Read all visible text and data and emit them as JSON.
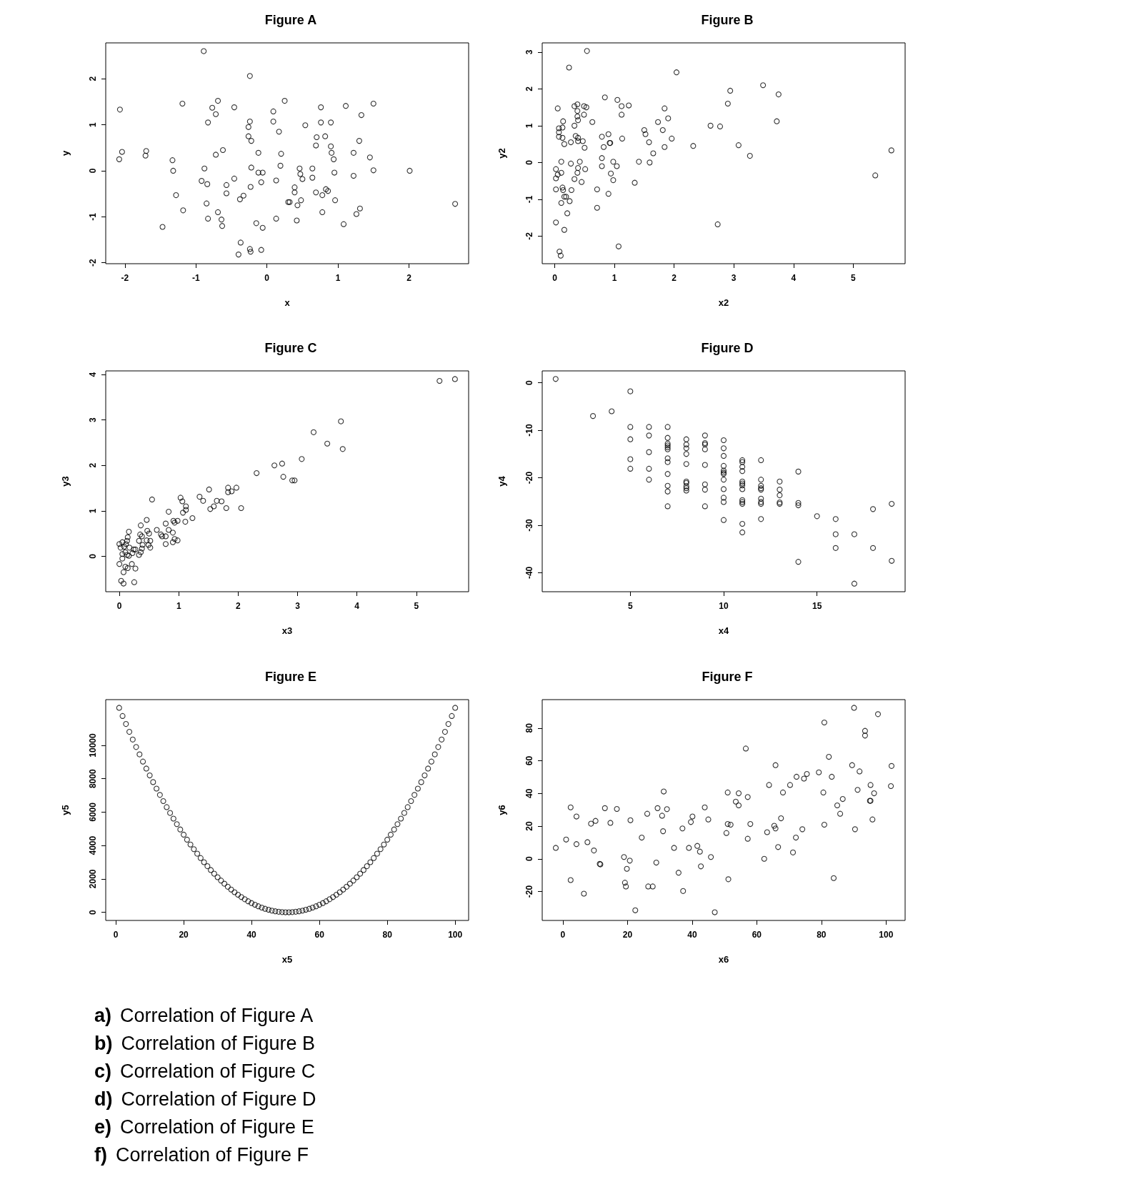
{
  "chart_data": [
    {
      "type": "scatter",
      "title": "Figure A",
      "xlabel": "x",
      "ylabel": "y",
      "color": "#000000",
      "marker": "circle",
      "xlim": [
        -2.27,
        2.84
      ],
      "ylim": [
        -2.02,
        2.78
      ],
      "xticks": [
        -2,
        -1,
        0,
        1,
        2
      ],
      "yticks": [
        -2,
        -1,
        0,
        1,
        2
      ],
      "x": [
        -0.89,
        -0.24,
        0.25,
        -0.69,
        -1.19,
        1.5,
        -2.07,
        -0.77,
        -0.46,
        0.76,
        1.11,
        -0.72,
        0.09,
        1.33,
        -0.83,
        -0.24,
        0.09,
        0.76,
        0.9,
        -0.26,
        0.54,
        0.17,
        -0.26,
        0.7,
        0.82,
        -0.22,
        1.3,
        0.69,
        0.9,
        -2.04,
        -1.7,
        -0.62,
        -0.12,
        0.91,
        1.22,
        -0.72,
        0.2,
        -1.71,
        -2.08,
        -1.33,
        0.94,
        1.45,
        0.19,
        -0.88,
        -0.22,
        0.46,
        0.64,
        -1.32,
        1.5,
        2.01,
        -0.12,
        -0.06,
        0.47,
        0.95,
        1.22,
        -0.46,
        0.13,
        0.5,
        0.64,
        -0.92,
        -0.08,
        -0.84,
        -0.57,
        -0.23,
        0.39,
        0.39,
        0.83,
        0.86,
        -1.28,
        -0.57,
        0.69,
        0.78,
        -0.33,
        -0.38,
        0.48,
        0.96,
        0.3,
        0.32,
        -0.85,
        0.43,
        2.65,
        1.31,
        -1.18,
        -0.69,
        0.78,
        1.26,
        -0.83,
        0.13,
        -0.64,
        0.42,
        -1.47,
        -0.63,
        -0.15,
        1.08,
        -0.06,
        -0.37,
        -0.24,
        -0.08,
        -0.23,
        -0.4
      ],
      "values": [
        2.6,
        2.06,
        1.52,
        1.52,
        1.46,
        1.46,
        1.33,
        1.37,
        1.38,
        1.38,
        1.41,
        1.23,
        1.29,
        1.21,
        1.05,
        1.07,
        1.07,
        1.05,
        1.05,
        0.95,
        0.99,
        0.85,
        0.75,
        0.73,
        0.75,
        0.65,
        0.65,
        0.55,
        0.53,
        0.41,
        0.43,
        0.45,
        0.39,
        0.39,
        0.39,
        0.35,
        0.37,
        0.33,
        0.25,
        0.23,
        0.25,
        0.29,
        0.11,
        0.05,
        0.07,
        0.05,
        0.05,
        0,
        0.01,
        0,
        -0.04,
        -0.04,
        -0.07,
        -0.04,
        -0.11,
        -0.17,
        -0.21,
        -0.18,
        -0.15,
        -0.22,
        -0.25,
        -0.29,
        -0.31,
        -0.35,
        -0.36,
        -0.47,
        -0.4,
        -0.44,
        -0.53,
        -0.49,
        -0.47,
        -0.53,
        -0.54,
        -0.62,
        -0.64,
        -0.64,
        -0.68,
        -0.68,
        -0.71,
        -0.75,
        -0.72,
        -0.82,
        -0.86,
        -0.9,
        -0.9,
        -0.94,
        -1.04,
        -1.04,
        -1.06,
        -1.08,
        -1.22,
        -1.2,
        -1.14,
        -1.16,
        -1.24,
        -1.56,
        -1.7,
        -1.72,
        -1.76,
        -1.82
      ]
    },
    {
      "type": "scatter",
      "title": "Figure B",
      "xlabel": "x2",
      "ylabel": "y2",
      "color": "#000000",
      "marker": "circle",
      "xlim": [
        -0.21,
        5.87
      ],
      "ylim": [
        -2.75,
        3.25
      ],
      "xticks": [
        0,
        1,
        2,
        3,
        4,
        5
      ],
      "yticks": [
        -2,
        -1,
        0,
        1,
        2,
        3
      ],
      "x": [
        0.54,
        0.24,
        2.04,
        3.49,
        2.94,
        3.75,
        0.84,
        1.05,
        2.9,
        0.38,
        0.33,
        0.49,
        0.53,
        1.12,
        1.24,
        0.05,
        1.84,
        0.38,
        0.38,
        0.49,
        1.12,
        1.9,
        0.39,
        0.14,
        0.63,
        1.73,
        3.72,
        0.33,
        2.61,
        2.77,
        0.07,
        0.13,
        1.5,
        1.81,
        0.07,
        0.9,
        1.52,
        0.35,
        0.07,
        0.13,
        0.39,
        0.79,
        1.13,
        1.96,
        0.47,
        0.39,
        0.27,
        1.58,
        0.16,
        0.92,
        0.93,
        0.5,
        0.82,
        1.84,
        2.32,
        3.08,
        5.64,
        1.65,
        3.27,
        0.79,
        0.11,
        0.42,
        0.98,
        1.41,
        1.59,
        0.27,
        0.79,
        1.04,
        0.02,
        0.39,
        0.51,
        0.11,
        0.38,
        0.05,
        0.94,
        0.02,
        0.33,
        0.98,
        0.45,
        1.34,
        5.37,
        0.02,
        0.13,
        0.14,
        0.28,
        0.71,
        0.9,
        0.16,
        0.19,
        0.11,
        0.25,
        0.71,
        0.21,
        0.02,
        2.73,
        0.16,
        1.07,
        0.08,
        0.1
      ],
      "values": [
        3.03,
        2.58,
        2.45,
        2.1,
        1.95,
        1.85,
        1.77,
        1.7,
        1.6,
        1.58,
        1.53,
        1.53,
        1.5,
        1.53,
        1.55,
        1.47,
        1.47,
        1.4,
        1.25,
        1.3,
        1.3,
        1.2,
        1.15,
        1.12,
        1.1,
        1.1,
        1.12,
        1,
        1,
        0.98,
        0.93,
        0.95,
        0.88,
        0.88,
        0.82,
        0.77,
        0.77,
        0.72,
        0.7,
        0.67,
        0.67,
        0.7,
        0.65,
        0.65,
        0.58,
        0.58,
        0.55,
        0.55,
        0.5,
        0.53,
        0.53,
        0.4,
        0.42,
        0.42,
        0.45,
        0.47,
        0.33,
        0.25,
        0.18,
        0.12,
        0.02,
        0.02,
        0.02,
        0.02,
        0,
        -0.03,
        -0.1,
        -0.1,
        -0.18,
        -0.15,
        -0.18,
        -0.28,
        -0.28,
        -0.33,
        -0.3,
        -0.43,
        -0.45,
        -0.48,
        -0.53,
        -0.55,
        -0.35,
        -0.73,
        -0.68,
        -0.75,
        -0.75,
        -0.73,
        -0.85,
        -0.93,
        -0.93,
        -1.1,
        -1.05,
        -1.23,
        -1.38,
        -1.63,
        -1.68,
        -1.83,
        -2.28,
        -2.42,
        -2.53
      ]
    },
    {
      "type": "scatter",
      "title": "Figure C",
      "xlabel": "x3",
      "ylabel": "y3",
      "color": "#000000",
      "marker": "circle",
      "xlim": [
        -0.23,
        5.88
      ],
      "ylim": [
        -0.78,
        4.08
      ],
      "xticks": [
        0,
        1,
        2,
        3,
        4,
        5
      ],
      "yticks": [
        0,
        1,
        2,
        3,
        4
      ],
      "x": [
        5.65,
        5.39,
        3.73,
        3.27,
        3.5,
        3.76,
        3.07,
        2.74,
        2.61,
        2.31,
        2.76,
        2.91,
        2.95,
        1.51,
        1.83,
        1.97,
        1.83,
        1.89,
        0.55,
        1.03,
        1.35,
        1.06,
        1.41,
        1.64,
        1.72,
        1.12,
        1.59,
        1.53,
        1.8,
        2.05,
        1.12,
        1.07,
        0.83,
        1.23,
        0.46,
        0.91,
        0.98,
        0.93,
        1.11,
        0.78,
        0.36,
        0.63,
        0.83,
        0.47,
        0.16,
        0.5,
        0.9,
        0.7,
        0.35,
        0.38,
        0.72,
        0.14,
        0.78,
        0.46,
        0.33,
        0.52,
        0.9,
        0.98,
        0.93,
        0.13,
        0.05,
        0,
        0.11,
        0.78,
        0.39,
        0.49,
        0.02,
        0.08,
        0.17,
        0.52,
        0.27,
        0.24,
        0.38,
        0.1,
        0.22,
        0.05,
        0.13,
        0.33,
        0.36,
        0.16,
        0.05,
        0,
        0.21,
        0.1,
        0.14,
        0.27,
        0.07,
        0.03,
        0.07,
        0.25
      ],
      "values": [
        3.9,
        3.86,
        2.97,
        2.73,
        2.48,
        2.36,
        2.14,
        2.04,
        2,
        1.83,
        1.75,
        1.67,
        1.67,
        1.47,
        1.51,
        1.51,
        1.41,
        1.43,
        1.25,
        1.29,
        1.31,
        1.21,
        1.22,
        1.22,
        1.21,
        1.1,
        1.1,
        1.04,
        1.06,
        1.06,
        1.02,
        0.96,
        0.98,
        0.84,
        0.8,
        0.78,
        0.78,
        0.74,
        0.76,
        0.72,
        0.68,
        0.58,
        0.58,
        0.56,
        0.54,
        0.5,
        0.52,
        0.48,
        0.48,
        0.44,
        0.44,
        0.42,
        0.44,
        0.35,
        0.34,
        0.34,
        0.31,
        0.35,
        0.38,
        0.34,
        0.31,
        0.27,
        0.27,
        0.27,
        0.25,
        0.25,
        0.19,
        0.21,
        0.19,
        0.19,
        0.15,
        0.15,
        0.17,
        0.09,
        0.07,
        0.05,
        0.03,
        0.03,
        0.09,
        0.01,
        -0.05,
        -0.17,
        -0.17,
        -0.23,
        -0.26,
        -0.27,
        -0.35,
        -0.54,
        -0.6,
        -0.57
      ]
    },
    {
      "type": "scatter",
      "title": "Figure D",
      "xlabel": "x4",
      "ylabel": "y4",
      "color": "#000000",
      "marker": "circle",
      "xlim": [
        0.28,
        19.72
      ],
      "ylim": [
        -44.0,
        2.5
      ],
      "xticks": [
        5,
        10,
        15
      ],
      "yticks": [
        -40,
        -30,
        -20,
        -10,
        0
      ],
      "x": [
        1,
        3,
        4,
        5,
        5,
        5,
        5,
        5,
        6,
        6,
        6,
        6,
        6,
        7,
        7,
        7,
        7,
        7,
        7,
        7,
        7,
        7,
        7,
        7,
        7,
        8,
        8,
        8,
        8,
        8,
        8,
        8,
        8,
        8,
        8,
        9,
        9,
        9,
        9,
        9,
        9,
        9,
        9,
        10,
        10,
        10,
        10,
        10,
        10,
        10,
        10,
        10,
        10,
        10,
        10,
        11,
        11,
        11,
        11,
        11,
        11,
        11,
        11,
        11,
        11,
        11,
        11,
        11,
        12,
        12,
        12,
        12,
        12,
        12,
        12,
        12,
        12,
        13,
        13,
        13,
        13,
        13,
        14,
        14,
        14,
        14,
        15,
        16,
        16,
        16,
        17,
        17,
        18,
        18,
        19,
        19
      ],
      "values": [
        0.8,
        -7.0,
        -6.0,
        -1.8,
        -9.3,
        -11.9,
        -16.1,
        -18.1,
        -9.3,
        -11.1,
        -14.6,
        -18.1,
        -20.4,
        -9.3,
        -11.6,
        -12.8,
        -13.2,
        -13.6,
        -14.0,
        -15.9,
        -16.7,
        -19.2,
        -21.7,
        -22.9,
        -26.0,
        -11.9,
        -13.0,
        -13.8,
        -15.0,
        -17.1,
        -20.8,
        -21.1,
        -21.8,
        -22.2,
        -22.7,
        -11.1,
        -12.7,
        -13.0,
        -14.0,
        -17.3,
        -21.4,
        -22.5,
        -26.0,
        -12.1,
        -13.8,
        -15.4,
        -17.5,
        -18.5,
        -18.9,
        -19.2,
        -20.4,
        -22.4,
        -24.2,
        -25.1,
        -28.9,
        -16.3,
        -16.7,
        -17.7,
        -18.6,
        -20.8,
        -21.2,
        -21.6,
        -22.4,
        -24.7,
        -25.1,
        -25.5,
        -29.7,
        -31.5,
        -16.3,
        -20.4,
        -21.7,
        -22.2,
        -22.5,
        -24.4,
        -25.1,
        -25.5,
        -28.7,
        -20.8,
        -22.5,
        -23.7,
        -25.2,
        -25.5,
        -18.7,
        -25.3,
        -25.8,
        -37.7,
        -28.1,
        -28.7,
        -31.9,
        -34.8,
        -31.9,
        -42.3,
        -26.6,
        -34.8,
        -25.5,
        -37.5
      ]
    },
    {
      "type": "scatter",
      "title": "Figure E",
      "xlabel": "x5",
      "ylabel": "y5",
      "color": "#000000",
      "marker": "circle",
      "xlim": [
        -2.96,
        103.96
      ],
      "ylim": [
        -490,
        12740
      ],
      "xticks": [
        0,
        20,
        40,
        60,
        80,
        100
      ],
      "yticks": [
        0,
        2000,
        4000,
        6000,
        8000,
        10000
      ],
      "x": [
        1,
        2,
        3,
        4,
        5,
        6,
        7,
        8,
        9,
        10,
        11,
        12,
        13,
        14,
        15,
        16,
        17,
        18,
        19,
        20,
        21,
        22,
        23,
        24,
        25,
        26,
        27,
        28,
        29,
        30,
        31,
        32,
        33,
        34,
        35,
        36,
        37,
        38,
        39,
        40,
        41,
        42,
        43,
        44,
        45,
        46,
        47,
        48,
        49,
        50,
        51,
        52,
        53,
        54,
        55,
        56,
        57,
        58,
        59,
        60,
        61,
        62,
        63,
        64,
        65,
        66,
        67,
        68,
        69,
        70,
        71,
        72,
        73,
        74,
        75,
        76,
        77,
        78,
        79,
        80,
        81,
        82,
        83,
        84,
        85,
        86,
        87,
        88,
        89,
        90,
        91,
        92,
        93,
        94,
        95,
        96,
        97,
        98,
        99,
        100
      ],
      "values": [
        12250,
        11760,
        11280,
        10810,
        10350,
        9900,
        9460,
        9030,
        8610,
        8200,
        7800,
        7410,
        7030,
        6660,
        6300,
        5950,
        5610,
        5280,
        4960,
        4650,
        4350,
        4060,
        3780,
        3510,
        3250,
        3000,
        2760,
        2530,
        2310,
        2100,
        1900,
        1710,
        1530,
        1360,
        1200,
        1050,
        910,
        780,
        660,
        550,
        450,
        360,
        280,
        210,
        150,
        100,
        60,
        30,
        10,
        0,
        0,
        10,
        30,
        60,
        100,
        150,
        210,
        280,
        360,
        450,
        550,
        660,
        780,
        910,
        1050,
        1200,
        1360,
        1530,
        1710,
        1900,
        2100,
        2310,
        2530,
        2760,
        3000,
        3250,
        3510,
        3780,
        4060,
        4350,
        4650,
        4960,
        5280,
        5610,
        5950,
        6300,
        6660,
        7030,
        7410,
        7800,
        8200,
        8610,
        9030,
        9460,
        9900,
        10350,
        10810,
        11280,
        11760,
        12250
      ]
    },
    {
      "type": "scatter",
      "title": "Figure F",
      "xlabel": "x6",
      "ylabel": "y6",
      "color": "#000000",
      "marker": "circle",
      "xlim": [
        -6.4,
        105.9
      ],
      "ylim": [
        -37.7,
        97.4
      ],
      "xticks": [
        0,
        20,
        40,
        60,
        80,
        100
      ],
      "yticks": [
        -20,
        0,
        20,
        40,
        60,
        80
      ],
      "x": [
        -2.2,
        1.0,
        2.4,
        4.2,
        4.2,
        2.4,
        6.5,
        7.6,
        8.7,
        10.1,
        9.6,
        11.4,
        11.6,
        13.0,
        14.7,
        16.7,
        18.9,
        19.2,
        19.5,
        19.8,
        20.7,
        20.9,
        22.4,
        24.4,
        26.1,
        26.4,
        27.8,
        28.9,
        29.3,
        30.7,
        31.0,
        31.2,
        32.2,
        34.4,
        35.8,
        37.0,
        37.2,
        39.0,
        39.6,
        40.1,
        41.6,
        42.4,
        42.7,
        43.9,
        45.0,
        45.8,
        47.0,
        50.6,
        51.0,
        51.0,
        51.9,
        51.2,
        53.5,
        54.4,
        54.4,
        56.6,
        57.2,
        57.2,
        58.0,
        62.3,
        63.2,
        63.8,
        65.4,
        65.8,
        65.8,
        66.6,
        67.5,
        68.1,
        70.3,
        71.2,
        72.1,
        72.3,
        74.1,
        74.6,
        75.5,
        79.2,
        80.6,
        80.9,
        80.9,
        82.3,
        83.2,
        83.8,
        84.9,
        85.8,
        86.6,
        89.5,
        90.1,
        90.4,
        91.2,
        91.8,
        93.5,
        93.5,
        95.2,
        95.0,
        95.2,
        95.8,
        96.3,
        97.5,
        101.5,
        101.7
      ],
      "values": [
        6.7,
        11.8,
        31.5,
        25.9,
        9.0,
        -13.0,
        -21.3,
        10.2,
        21.5,
        23.2,
        5.1,
        -3.1,
        -3.4,
        31.0,
        22.0,
        30.5,
        1.1,
        -14.6,
        -16.9,
        -6.1,
        -1.1,
        23.6,
        -31.5,
        13.0,
        27.6,
        -16.9,
        -16.9,
        -2.3,
        31.0,
        26.4,
        16.9,
        41.2,
        30.4,
        6.7,
        -8.5,
        18.6,
        -19.7,
        6.7,
        22.5,
        25.9,
        7.9,
        4.4,
        -4.6,
        31.5,
        24.1,
        1.1,
        -32.7,
        15.8,
        40.6,
        21.3,
        20.9,
        -12.5,
        35.0,
        32.7,
        40.1,
        67.5,
        37.8,
        12.3,
        21.3,
        0.0,
        16.3,
        45.2,
        20.2,
        18.6,
        57.3,
        7.2,
        24.8,
        40.6,
        45.2,
        3.9,
        13.0,
        50.2,
        18.1,
        49.1,
        51.9,
        52.9,
        40.6,
        20.9,
        83.4,
        62.4,
        50.2,
        -11.8,
        32.7,
        27.6,
        36.6,
        57.3,
        92.4,
        18.1,
        42.2,
        53.5,
        78.3,
        75.4,
        45.2,
        35.5,
        35.5,
        24.1,
        40.1,
        88.5,
        44.5,
        56.8
      ]
    },
    {
      "type": "other",
      "annotations": [
        "a) Correlation of Figure A",
        "b) Correlation of Figure B",
        "c) Correlation of Figure C",
        "d) Correlation of Figure D",
        "e) Correlation of Figure E",
        "f) Correlation of Figure F"
      ]
    }
  ]
}
